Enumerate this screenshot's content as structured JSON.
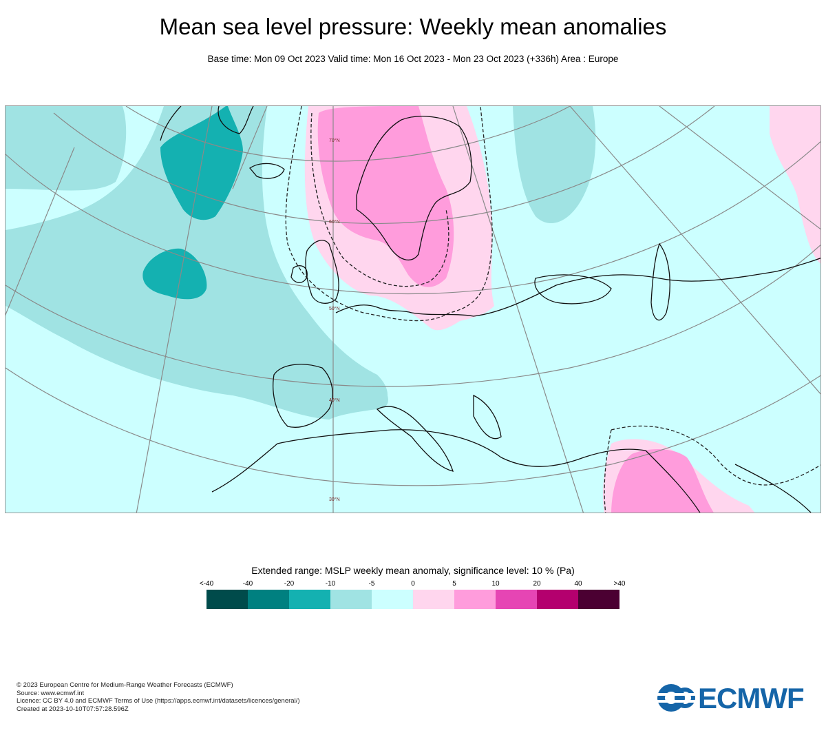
{
  "header": {
    "title": "Mean sea level pressure: Weekly mean anomalies",
    "subtitle": "Base time: Mon 09 Oct 2023 Valid time: Mon 16 Oct 2023 - Mon 23 Oct 2023 (+336h) Area : Europe"
  },
  "map": {
    "latitude_labels": [
      "70°N",
      "60°N",
      "50°N",
      "40°N",
      "30°N"
    ],
    "colors": {
      "background_band": "#ccffff",
      "neg_light": "#a0e3e3",
      "neg_mid": "#14b1b1",
      "pos_light": "#ffd6ee",
      "pos_mid": "#ff9cdc"
    }
  },
  "legend": {
    "title": "Extended range: MSLP weekly mean anomaly, significance level: 10 % (Pa)",
    "ticks": [
      "<-40",
      "-40",
      "-20",
      "-10",
      "-5",
      "0",
      "5",
      "10",
      "20",
      "40",
      ">40"
    ],
    "colors": [
      "#004b4b",
      "#008080",
      "#14b1b1",
      "#a0e3e3",
      "#ccffff",
      "#ffd6ee",
      "#ff9cdc",
      "#e645b4",
      "#b4006e",
      "#4b0032"
    ]
  },
  "footer": {
    "lines": [
      "© 2023 European Centre for Medium-Range Weather Forecasts (ECMWF)",
      "Source: www.ecmwf.int",
      "Licence: CC BY 4.0 and ECMWF Terms of Use (https://apps.ecmwf.int/datasets/licences/general/)",
      "Created at 2023-10-10T07:57:28.596Z"
    ]
  },
  "logo": {
    "text": "ECMWF"
  }
}
